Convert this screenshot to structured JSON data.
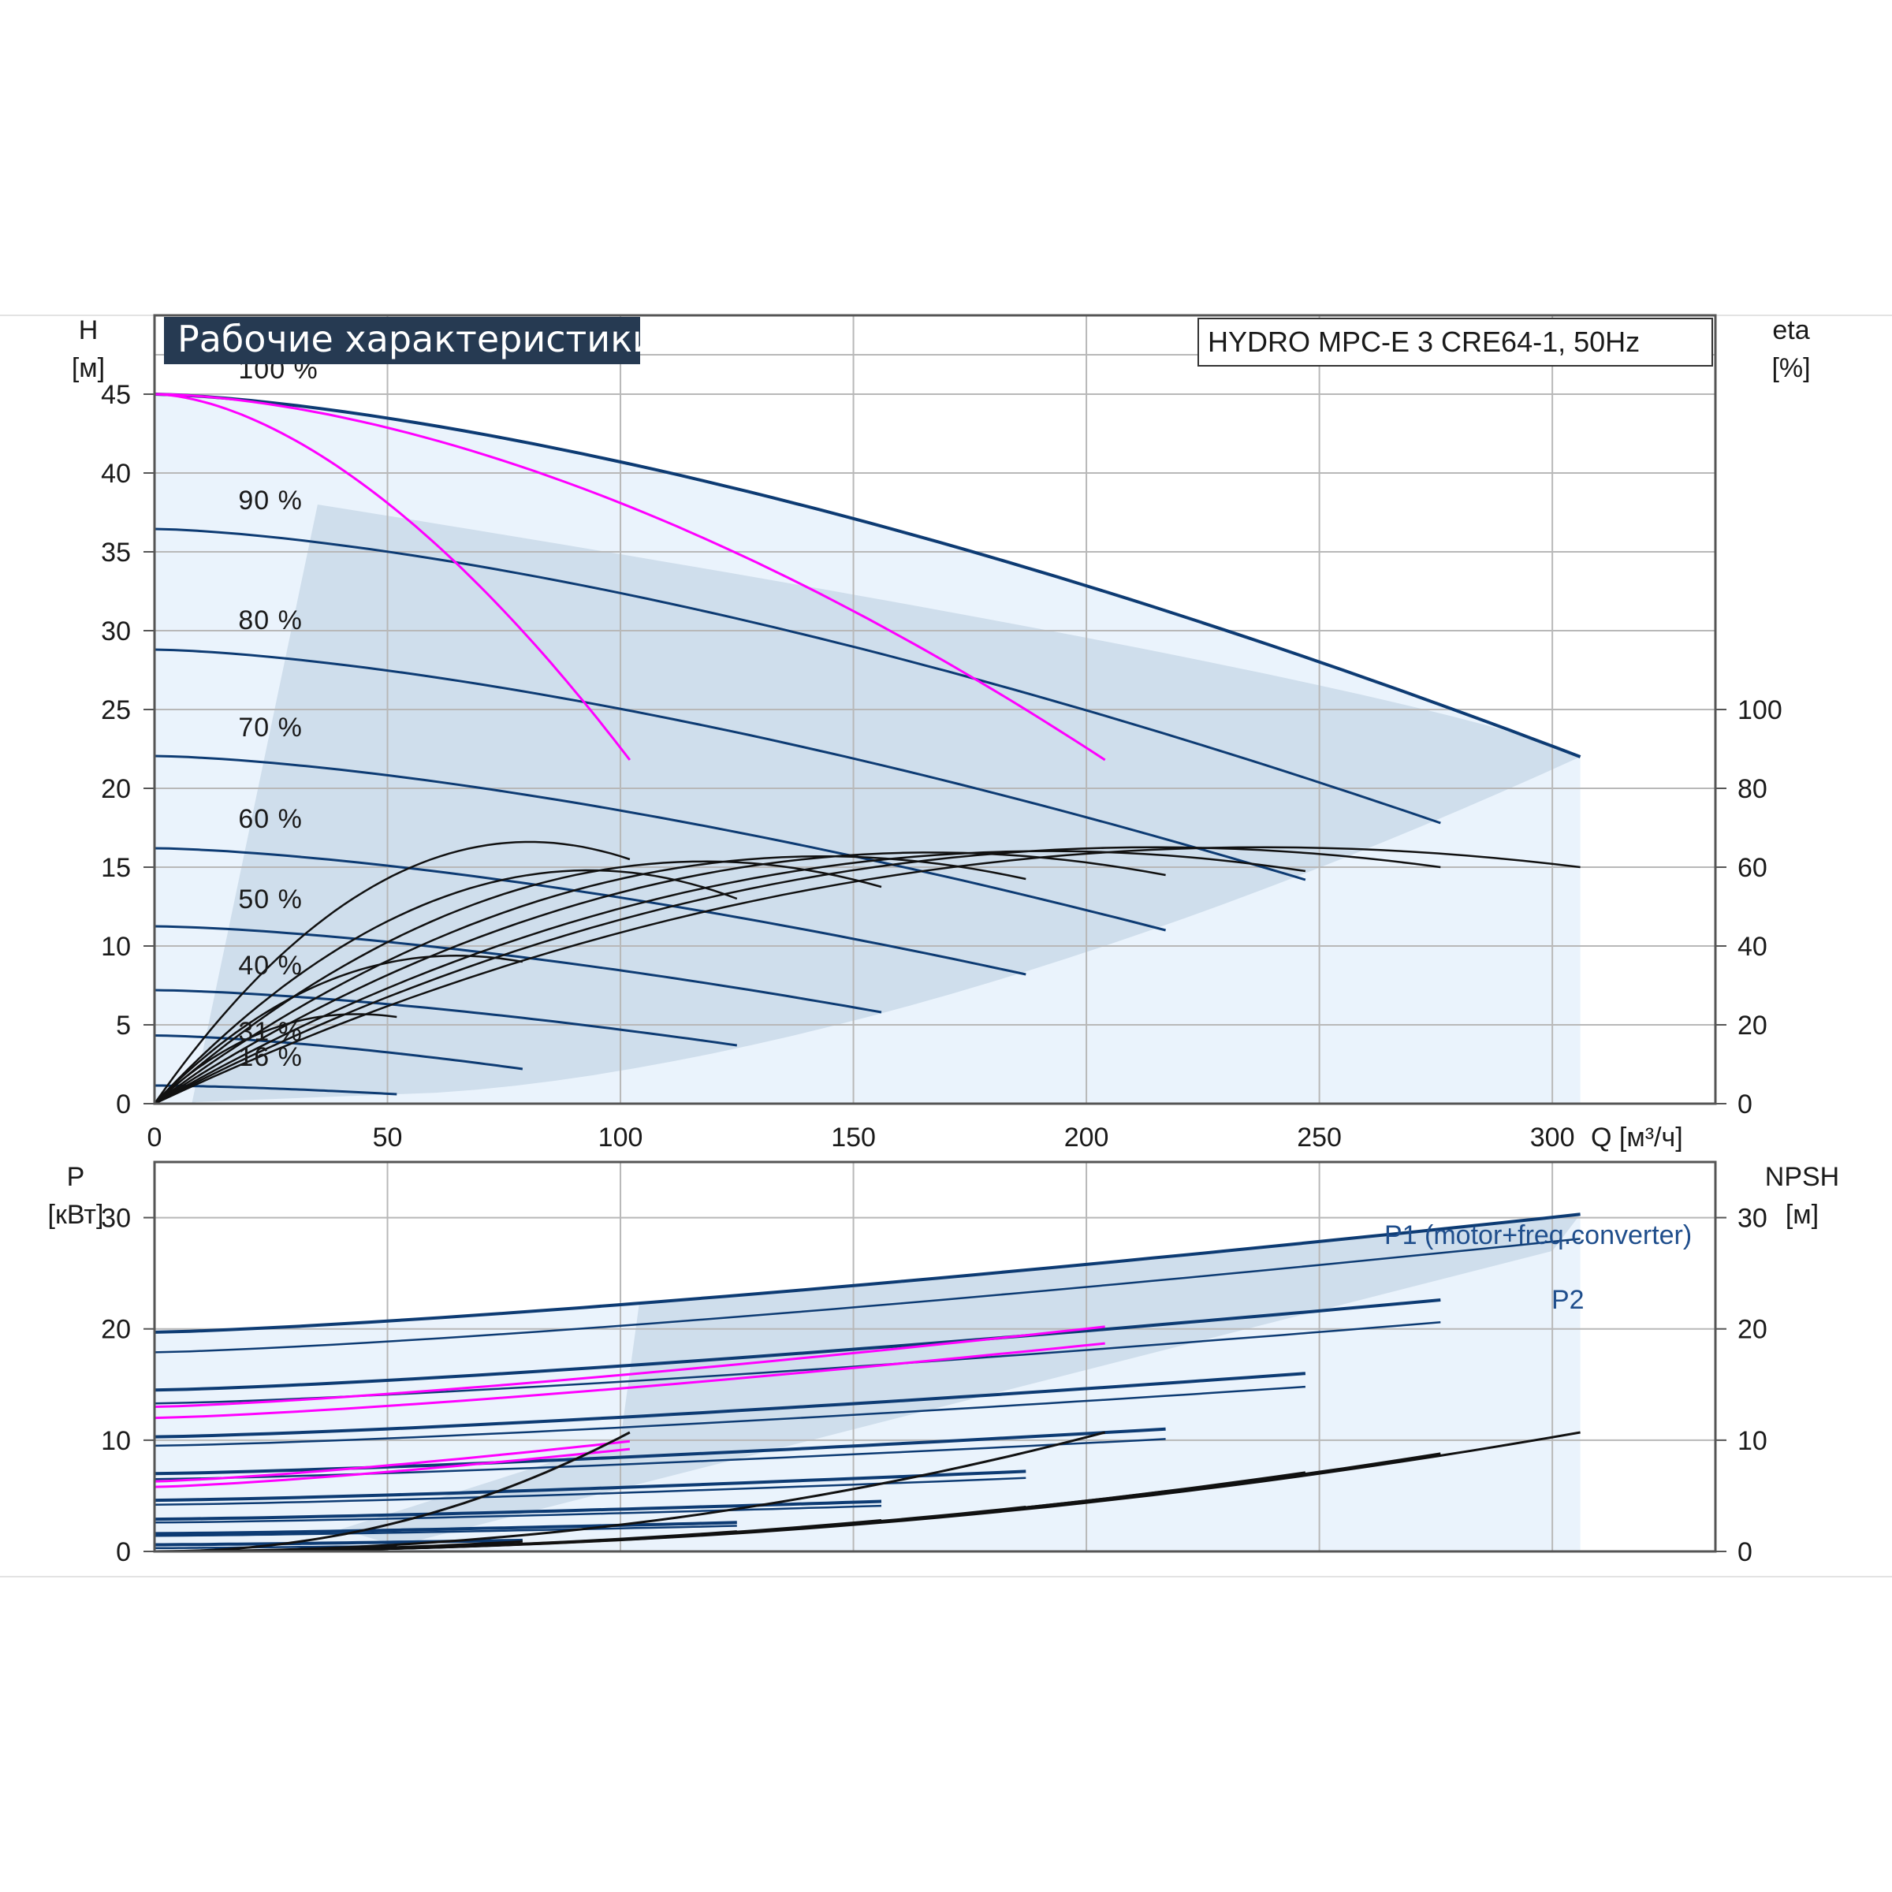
{
  "chart_data": [
    {
      "type": "line",
      "title": "Рабочие характеристики",
      "model": "HYDRO MPC-E 3 CRE64-1, 50Hz",
      "ylabel_left": [
        "H",
        "[м]"
      ],
      "ylabel_right": [
        "eta",
        "[%]"
      ],
      "xlabel": "Q [м³/ч]",
      "xlim": [
        0,
        335
      ],
      "ylim_left": [
        0,
        50
      ],
      "ylim_right_scale": {
        "at_zero": 0,
        "at_25m": 100
      },
      "x_ticks": [
        0,
        50,
        100,
        150,
        200,
        250,
        300
      ],
      "x_tick_labels": [
        "0",
        "50",
        "100",
        "150",
        "200",
        "250",
        "300"
      ],
      "y_ticks_left": [
        0,
        5,
        10,
        15,
        20,
        25,
        30,
        35,
        40,
        45
      ],
      "y_tick_labels_left": [
        "0",
        "5",
        "10",
        "15",
        "20",
        "25",
        "30",
        "35",
        "40",
        "45"
      ],
      "y_ticks_right": [
        0,
        20,
        40,
        60,
        80,
        100
      ],
      "y_tick_labels_right": [
        "0",
        "20",
        "40",
        "60",
        "80",
        "100"
      ],
      "grid": true,
      "speed_labels": [
        {
          "text": "100 %",
          "q": 18,
          "h": 46
        },
        {
          "text": "90 %",
          "q": 18,
          "h": 37.7
        },
        {
          "text": "80 %",
          "q": 18,
          "h": 30.1
        },
        {
          "text": "70 %",
          "q": 18,
          "h": 23.3
        },
        {
          "text": "60 %",
          "q": 18,
          "h": 17.5
        },
        {
          "text": "50 %",
          "q": 18,
          "h": 12.4
        },
        {
          "text": "40 %",
          "q": 18,
          "h": 8.2
        },
        {
          "text": "31 %",
          "q": 18,
          "h": 4.0
        },
        {
          "text": "16 %",
          "q": 18,
          "h": 2.4
        }
      ],
      "series": [
        {
          "speed": 1.0,
          "h0": 45,
          "h1": 22,
          "qmax": 306,
          "color": "#0d3b73"
        },
        {
          "speed": 0.9,
          "h0": 45,
          "h1": 17.8,
          "qmax": 276,
          "color": "#0d3b73"
        },
        {
          "speed": 0.8,
          "h0": 45,
          "h1": 14.2,
          "qmax": 247,
          "color": "#0d3b73"
        },
        {
          "speed": 0.7,
          "h0": 45,
          "h1": 11.0,
          "qmax": 217,
          "color": "#0d3b73"
        },
        {
          "speed": 0.6,
          "h0": 45,
          "h1": 8.2,
          "qmax": 187,
          "color": "#0d3b73"
        },
        {
          "speed": 0.5,
          "h0": 45,
          "h1": 5.8,
          "qmax": 156,
          "color": "#0d3b73"
        },
        {
          "speed": 0.4,
          "h0": 45,
          "h1": 3.7,
          "qmax": 125,
          "color": "#0d3b73"
        },
        {
          "speed": 0.31,
          "h0": 45,
          "h1": 2.2,
          "qmax": 79,
          "color": "#0d3b73"
        },
        {
          "speed": 0.16,
          "h0": 45,
          "h1": 0.6,
          "qmax": 52,
          "color": "#0d3b73"
        }
      ],
      "highlight_series": [
        {
          "name": "",
          "h0": 45,
          "h1": 21.8,
          "qmax": 204,
          "color": "#ff00ff"
        },
        {
          "name": "",
          "h0": 45,
          "h1": 21.8,
          "qmax": 102,
          "color": "#ff00ff"
        }
      ],
      "efficiency_peaks": [
        {
          "qmax": 306,
          "peak": 71,
          "end": 60
        },
        {
          "qmax": 276,
          "peak": 71,
          "end": 60
        },
        {
          "qmax": 247,
          "peak": 70,
          "end": 59
        },
        {
          "qmax": 217,
          "peak": 70,
          "end": 58
        },
        {
          "qmax": 187,
          "peak": 69,
          "end": 57
        },
        {
          "qmax": 156,
          "peak": 68,
          "end": 55
        },
        {
          "qmax": 125,
          "peak": 66,
          "end": 52
        },
        {
          "qmax": 102,
          "peak": 72,
          "end": 62
        },
        {
          "qmax": 79,
          "peak": 40,
          "end": 36
        },
        {
          "qmax": 52,
          "peak": 24,
          "end": 22
        }
      ],
      "colors": {
        "region_dark": "#cfdeec",
        "region_light": "#eaf3fc",
        "curve": "#0d3b73",
        "highlight": "#ff00ff",
        "efficiency": "#111111",
        "grid": "#b8b8b8"
      }
    },
    {
      "type": "line",
      "ylabel_left": [
        "P",
        "[кВт]"
      ],
      "ylabel_right": [
        "NPSH",
        "[м]"
      ],
      "ylim": [
        0,
        35
      ],
      "y_ticks": [
        0,
        10,
        20,
        30
      ],
      "y_tick_labels": [
        "0",
        "10",
        "20",
        "30"
      ],
      "labels": {
        "p1": "P1 (motor+freq.converter)",
        "p2": "P2"
      },
      "series": [
        {
          "name": "P1",
          "p0": 19.7,
          "p1": 30.3,
          "qmax": 306
        },
        {
          "name": "P2",
          "p0": 17.9,
          "p1": 28.1,
          "qmax": 306
        },
        {
          "name": "",
          "p0": 14.5,
          "p1": 22.6,
          "qmax": 276
        },
        {
          "name": "",
          "p0": 13.3,
          "p1": 20.6,
          "qmax": 276
        },
        {
          "name": "",
          "p0": 10.3,
          "p1": 16.0,
          "qmax": 247
        },
        {
          "name": "",
          "p0": 9.5,
          "p1": 14.8,
          "qmax": 247
        },
        {
          "name": "",
          "p0": 7.0,
          "p1": 11.0,
          "qmax": 217
        },
        {
          "name": "",
          "p0": 6.5,
          "p1": 10.1,
          "qmax": 217
        },
        {
          "name": "",
          "p0": 4.6,
          "p1": 7.2,
          "qmax": 187
        },
        {
          "name": "",
          "p0": 4.2,
          "p1": 6.6,
          "qmax": 187
        },
        {
          "name": "",
          "p0": 2.9,
          "p1": 4.5,
          "qmax": 156
        },
        {
          "name": "",
          "p0": 2.6,
          "p1": 4.1,
          "qmax": 156
        },
        {
          "name": "",
          "p0": 1.6,
          "p1": 2.6,
          "qmax": 125
        },
        {
          "name": "",
          "p0": 1.4,
          "p1": 2.3,
          "qmax": 125
        },
        {
          "name": "",
          "p0": 0.6,
          "p1": 1.0,
          "qmax": 79
        },
        {
          "name": "",
          "p0": 0.3,
          "p1": 0.5,
          "qmax": 52
        }
      ],
      "highlight_series": [
        {
          "p0": 13.0,
          "p1": 20.2,
          "qmax": 204
        },
        {
          "p0": 12.0,
          "p1": 18.7,
          "qmax": 204
        },
        {
          "p0": 6.3,
          "p1": 9.9,
          "qmax": 102
        },
        {
          "p0": 5.8,
          "p1": 9.2,
          "qmax": 102
        }
      ],
      "npsh_curves": [
        {
          "qmax": 306,
          "end": 10.7
        },
        {
          "qmax": 276,
          "end": 8.8
        },
        {
          "qmax": 247,
          "end": 7.1
        },
        {
          "qmax": 217,
          "end": 5.4
        },
        {
          "qmax": 187,
          "end": 4.0
        },
        {
          "qmax": 204,
          "end": 10.7
        },
        {
          "qmax": 102,
          "end": 10.7
        },
        {
          "qmax": 156,
          "end": 2.8
        },
        {
          "qmax": 125,
          "end": 1.8
        },
        {
          "qmax": 79,
          "end": 0.9
        },
        {
          "qmax": 52,
          "end": 0.5
        }
      ]
    }
  ]
}
